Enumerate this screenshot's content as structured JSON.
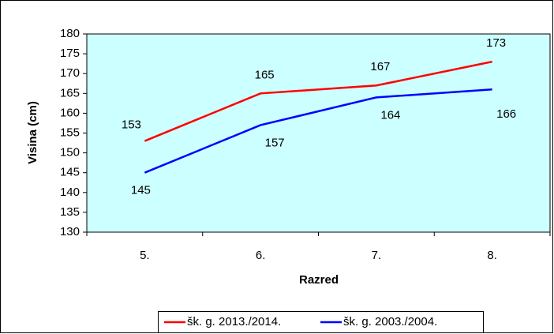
{
  "chart_data": {
    "type": "line",
    "categories": [
      "5.",
      "6.",
      "7.",
      "8."
    ],
    "series": [
      {
        "name": "šk. g. 2013./2014.",
        "color": "#ff0000",
        "values": [
          153,
          165,
          167,
          173
        ]
      },
      {
        "name": "šk. g. 2003./2004.",
        "color": "#0000ff",
        "values": [
          145,
          157,
          164,
          166
        ]
      }
    ],
    "ylim": [
      130,
      180
    ],
    "yticks": [
      130,
      135,
      140,
      145,
      150,
      155,
      160,
      165,
      170,
      175,
      180
    ],
    "y_label": "Visina (cm)",
    "x_label": "Razred",
    "plot_background": "#ccffff",
    "legend": "bottom"
  }
}
